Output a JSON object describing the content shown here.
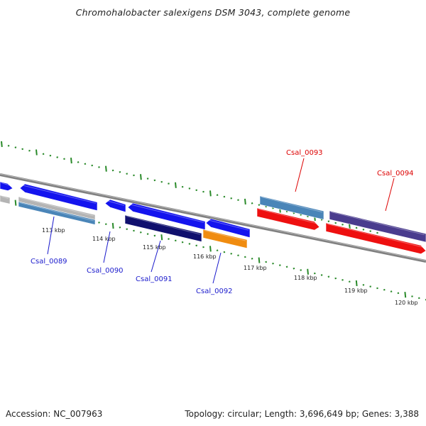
{
  "title": "Chromohalobacter salexigens DSM 3043, complete genome",
  "footer": {
    "accession": "Accession: NC_007963",
    "summary": "Topology: circular; Length: 3,696,649 bp; Genes: 3,388"
  },
  "colors": {
    "forward_label": "#1a1acc",
    "reverse_label": "#dd0000",
    "tick": "#2a8a2a",
    "backbone": "#808080",
    "blue": "#1414ee",
    "steelblue": "#4a85b8",
    "navy": "#10106e",
    "orange": "#f08c10",
    "red": "#ee1010",
    "purple": "#4a3c8e",
    "gray": "#b4b4b4"
  },
  "tick_labels": [
    "113 kbp",
    "114 kbp",
    "115 kbp",
    "116 kbp",
    "117 kbp",
    "118 kbp",
    "119 kbp",
    "120 kbp"
  ],
  "gene_labels": [
    {
      "id": "Csal_0089",
      "strand": "forward"
    },
    {
      "id": "Csal_0090",
      "strand": "forward"
    },
    {
      "id": "Csal_0091",
      "strand": "forward"
    },
    {
      "id": "Csal_0092",
      "strand": "forward"
    },
    {
      "id": "Csal_0093",
      "strand": "reverse"
    },
    {
      "id": "Csal_0094",
      "strand": "reverse"
    }
  ]
}
